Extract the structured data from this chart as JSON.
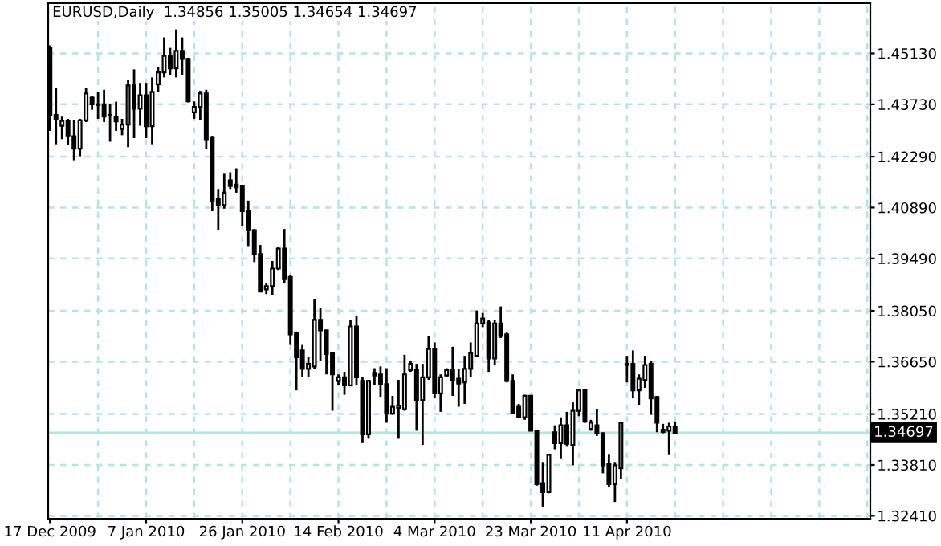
{
  "chart_data": {
    "type": "candlestick",
    "title": "EURUSD,Daily  1.34856 1.35005 1.34654 1.34697",
    "categories": [
      "17 Dec 2009",
      null,
      null,
      null,
      null,
      null,
      null,
      null,
      null,
      null,
      null,
      null,
      null,
      null,
      null,
      null,
      "7 Jan 2010",
      null,
      null,
      null,
      null,
      null,
      null,
      null,
      null,
      null,
      null,
      null,
      null,
      null,
      null,
      null,
      "26 Jan 2010",
      null,
      null,
      null,
      null,
      null,
      null,
      null,
      null,
      null,
      null,
      null,
      null,
      null,
      null,
      null,
      "14 Feb 2010",
      null,
      null,
      null,
      null,
      null,
      null,
      null,
      null,
      null,
      null,
      null,
      null,
      null,
      null,
      null,
      "4 Mar 2010",
      null,
      null,
      null,
      null,
      null,
      null,
      null,
      null,
      null,
      null,
      null,
      null,
      null,
      null,
      null,
      "23 Mar 2010",
      null,
      null,
      null,
      null,
      null,
      null,
      null,
      null,
      null,
      null,
      null,
      null,
      null,
      null,
      null,
      "11 Apr 2010",
      null,
      null,
      null,
      null,
      null,
      null,
      null,
      null,
      null,
      null,
      null,
      null,
      null,
      null,
      null,
      null,
      null,
      null,
      null,
      null,
      null,
      null,
      null,
      null,
      null,
      null,
      null,
      null,
      null,
      null,
      null,
      null,
      null,
      null,
      null,
      null,
      null,
      null,
      null,
      null
    ],
    "ohlc": [
      [
        1.4528,
        1.4535,
        1.43,
        1.4344
      ],
      [
        1.4344,
        1.4417,
        1.4263,
        1.4333
      ],
      [
        1.4314,
        1.4339,
        1.4277,
        1.4327
      ],
      [
        1.4327,
        1.4333,
        1.426,
        1.4285
      ],
      [
        1.4285,
        1.4329,
        1.4219,
        1.4251
      ],
      [
        1.4251,
        1.4333,
        1.423,
        1.4329
      ],
      [
        1.4329,
        1.4417,
        1.4324,
        1.4403
      ],
      [
        1.4391,
        1.4395,
        1.4358,
        1.4373
      ],
      [
        1.4373,
        1.4406,
        1.4333,
        1.4371
      ],
      [
        1.4373,
        1.4413,
        1.4324,
        1.4339
      ],
      [
        1.4344,
        1.4373,
        1.427,
        1.4342
      ],
      [
        1.4339,
        1.438,
        1.43,
        1.4326
      ],
      [
        1.4305,
        1.4333,
        1.4288,
        1.4317
      ],
      [
        1.4317,
        1.4439,
        1.4255,
        1.4425
      ],
      [
        1.4425,
        1.4469,
        1.428,
        1.4361
      ],
      [
        1.4361,
        1.4432,
        1.4314,
        1.4398
      ],
      [
        1.4398,
        1.4432,
        1.428,
        1.4313
      ],
      [
        1.4313,
        1.4447,
        1.4263,
        1.4407
      ],
      [
        1.4428,
        1.4476,
        1.4407,
        1.4461
      ],
      [
        1.4461,
        1.4557,
        1.4447,
        1.4506
      ],
      [
        1.4506,
        1.4528,
        1.4454,
        1.4472
      ],
      [
        1.4472,
        1.4579,
        1.4447,
        1.452
      ],
      [
        1.452,
        1.4557,
        1.4454,
        1.4498
      ],
      [
        1.4498,
        1.4501,
        1.4378,
        1.4381
      ],
      [
        1.4351,
        1.4381,
        1.4333,
        1.4366
      ],
      [
        1.4366,
        1.441,
        1.4329,
        1.4403
      ],
      [
        1.4403,
        1.4413,
        1.4251,
        1.4277
      ],
      [
        1.428,
        1.4284,
        1.4079,
        1.4108
      ],
      [
        1.4113,
        1.4138,
        1.4027,
        1.4096
      ],
      [
        1.4096,
        1.4182,
        1.4086,
        1.413
      ],
      [
        1.4164,
        1.4186,
        1.4138,
        1.4148
      ],
      [
        1.4152,
        1.4197,
        1.413,
        1.4145
      ],
      [
        1.4148,
        1.4152,
        1.4039,
        1.4079
      ],
      [
        1.4079,
        1.4108,
        1.3983,
        1.4027
      ],
      [
        1.4027,
        1.403,
        1.3939,
        1.3961
      ],
      [
        1.3961,
        1.3986,
        1.3858,
        1.3858
      ],
      [
        1.3864,
        1.388,
        1.3851,
        1.3873
      ],
      [
        1.3873,
        1.3942,
        1.3848,
        1.3921
      ],
      [
        1.3921,
        1.398,
        1.3917,
        1.3976
      ],
      [
        1.3976,
        1.403,
        1.388,
        1.3892
      ],
      [
        1.3898,
        1.3902,
        1.3711,
        1.374
      ],
      [
        1.3745,
        1.3748,
        1.3586,
        1.3677
      ],
      [
        1.3696,
        1.3711,
        1.3622,
        1.3645
      ],
      [
        1.3645,
        1.3677,
        1.3622,
        1.3659
      ],
      [
        1.3652,
        1.3836,
        1.3645,
        1.378
      ],
      [
        1.378,
        1.3814,
        1.3666,
        1.3751
      ],
      [
        1.3751,
        1.3751,
        1.363,
        1.3686
      ],
      [
        1.3689,
        1.3689,
        1.353,
        1.363
      ],
      [
        1.3612,
        1.363,
        1.36,
        1.3622
      ],
      [
        1.3622,
        1.3637,
        1.3574,
        1.36
      ],
      [
        1.36,
        1.378,
        1.3597,
        1.3762
      ],
      [
        1.3762,
        1.3792,
        1.36,
        1.3622
      ],
      [
        1.3612,
        1.3622,
        1.3441,
        1.3465
      ],
      [
        1.3465,
        1.3615,
        1.3453,
        1.3612
      ],
      [
        1.3634,
        1.3647,
        1.36,
        1.3627
      ],
      [
        1.363,
        1.3652,
        1.3568,
        1.3603
      ],
      [
        1.3603,
        1.3647,
        1.3497,
        1.3522
      ],
      [
        1.3522,
        1.3571,
        1.3519,
        1.3541
      ],
      [
        1.3538,
        1.3615,
        1.3453,
        1.3544
      ],
      [
        1.3534,
        1.3684,
        1.353,
        1.363
      ],
      [
        1.3642,
        1.3667,
        1.3637,
        1.3659
      ],
      [
        1.3642,
        1.3659,
        1.3475,
        1.3559
      ],
      [
        1.3559,
        1.3659,
        1.3436,
        1.3622
      ],
      [
        1.3622,
        1.3736,
        1.3615,
        1.37
      ],
      [
        1.37,
        1.3718,
        1.3564,
        1.3578
      ],
      [
        1.3578,
        1.363,
        1.3527,
        1.3622
      ],
      [
        1.3627,
        1.3647,
        1.3622,
        1.3642
      ],
      [
        1.3642,
        1.3706,
        1.3571,
        1.3615
      ],
      [
        1.3618,
        1.3645,
        1.3541,
        1.3605
      ],
      [
        1.3608,
        1.3681,
        1.3549,
        1.3645
      ],
      [
        1.3645,
        1.3718,
        1.3622,
        1.3689
      ],
      [
        1.3681,
        1.3806,
        1.3677,
        1.377
      ],
      [
        1.377,
        1.3799,
        1.376,
        1.3784
      ],
      [
        1.3773,
        1.378,
        1.3637,
        1.3674
      ],
      [
        1.3674,
        1.378,
        1.3657,
        1.377
      ],
      [
        1.377,
        1.3817,
        1.373,
        1.3736
      ],
      [
        1.374,
        1.3745,
        1.3608,
        1.3612
      ],
      [
        1.3612,
        1.363,
        1.3524,
        1.3524
      ],
      [
        1.3541,
        1.3549,
        1.3509,
        1.3512
      ],
      [
        1.3512,
        1.3574,
        1.3505,
        1.3571
      ],
      [
        1.3571,
        1.3571,
        1.3475,
        1.3475
      ],
      [
        1.3475,
        1.3475,
        1.3324,
        1.3328
      ],
      [
        1.3331,
        1.3387,
        1.3265,
        1.3306
      ],
      [
        1.3306,
        1.3412,
        1.3303,
        1.3409
      ],
      [
        1.3471,
        1.349,
        1.3424,
        1.3441
      ],
      [
        1.3441,
        1.3512,
        1.3397,
        1.349
      ],
      [
        1.349,
        1.3527,
        1.3431,
        1.3439
      ],
      [
        1.3436,
        1.3553,
        1.338,
        1.353
      ],
      [
        1.353,
        1.3589,
        1.3515,
        1.3586
      ],
      [
        1.3586,
        1.3589,
        1.3497,
        1.35
      ],
      [
        1.348,
        1.3505,
        1.3475,
        1.3497
      ],
      [
        1.349,
        1.3534,
        1.3461,
        1.3468
      ],
      [
        1.3468,
        1.3471,
        1.3358,
        1.338
      ],
      [
        1.3383,
        1.3409,
        1.332,
        1.3328
      ],
      [
        1.3328,
        1.3387,
        1.3279,
        1.338
      ],
      [
        1.3372,
        1.35,
        1.3343,
        1.3497
      ],
      [
        1.3659,
        1.3681,
        1.3608,
        1.3656
      ],
      [
        1.3659,
        1.3696,
        1.3564,
        1.3586
      ],
      [
        1.3586,
        1.363,
        1.3545,
        1.3618
      ],
      [
        1.3615,
        1.3681,
        1.3593,
        1.3656
      ],
      [
        1.3659,
        1.3667,
        1.3519,
        1.3564
      ],
      [
        1.3568,
        1.3571,
        1.3471,
        1.3497
      ],
      [
        1.3478,
        1.3494,
        1.3468,
        1.3472
      ],
      [
        1.3475,
        1.3497,
        1.3408,
        1.3487
      ],
      [
        1.34856,
        1.35005,
        1.34654,
        1.34697
      ],
      null,
      null,
      null,
      null,
      null,
      null,
      null,
      null,
      null,
      null,
      null,
      null,
      null,
      null,
      null,
      null,
      null,
      null,
      null,
      null,
      null,
      null,
      null,
      null,
      null,
      null,
      null,
      null,
      null,
      null,
      null,
      null
    ],
    "ylim": [
      1.3233,
      1.4651
    ],
    "yticks": [
      {
        "value": 1.4513,
        "label": "1.45130"
      },
      {
        "value": 1.4373,
        "label": "1.43730"
      },
      {
        "value": 1.4229,
        "label": "1.42290"
      },
      {
        "value": 1.4089,
        "label": "1.40890"
      },
      {
        "value": 1.3949,
        "label": "1.39490"
      },
      {
        "value": 1.3805,
        "label": "1.38050"
      },
      {
        "value": 1.3665,
        "label": "1.36650"
      },
      {
        "value": 1.3521,
        "label": "1.35210"
      },
      {
        "value": 1.3381,
        "label": "1.33810"
      },
      {
        "value": 1.3241,
        "label": "1.32410"
      }
    ],
    "grid": true,
    "ref_lines": [
      {
        "axis": "y",
        "value": 1.34697,
        "label": "1.34697",
        "color": "#b4e4e4"
      }
    ]
  }
}
